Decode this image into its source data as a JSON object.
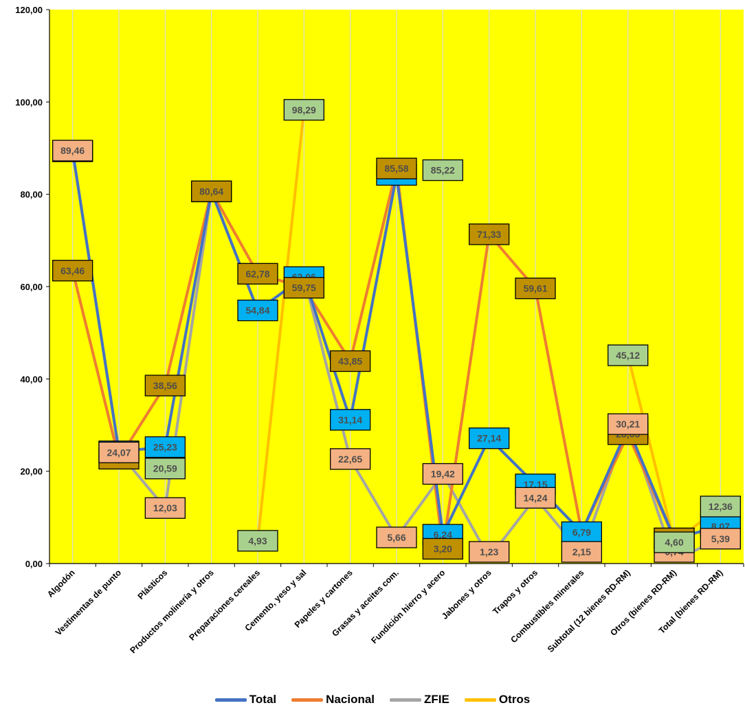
{
  "chart_data": {
    "type": "line",
    "title": "",
    "xlabel": "",
    "ylabel": "",
    "ylim": [
      0,
      120
    ],
    "yticks": [
      0,
      20,
      40,
      60,
      80,
      100,
      120
    ],
    "ytick_labels": [
      "0,00",
      "20,00",
      "40,00",
      "60,00",
      "80,00",
      "100,00",
      "120,00"
    ],
    "grid": "vertical",
    "plot_background": "#ffff00",
    "legend_position": "bottom",
    "categories": [
      "Algodón",
      "Vestimentas de punto",
      "Plásticos",
      "Productos molinería y otros",
      "Preparaciones cereales",
      "Cemento, yeso y sal",
      "Papeles y cartones",
      "Grasas y aceites com.",
      "Fundición hierro y acero",
      "Jabones y otros",
      "Trapos y otros",
      "Combustibles minerales",
      "Subtotal (12 bienes RD-RM)",
      "Otros (bienes RD-RM)",
      "Total (bienes RD-RM)"
    ],
    "series": [
      {
        "name": "Total",
        "color": "#4472c4",
        "label_color": "#00b0f0",
        "values": [
          89.31,
          24.31,
          25.23,
          80.61,
          54.84,
          62.06,
          31.14,
          84.2,
          6.24,
          27.14,
          17.15,
          6.79,
          29.45,
          5.44,
          8.07
        ],
        "labels": [
          "89,31",
          "24,31",
          "25,23",
          "80,61",
          "54,84",
          "62,06",
          "31,14",
          "84,20",
          "6,24",
          "27,14",
          "17,15",
          "6,79",
          "29,45",
          "5,44",
          "8,07"
        ]
      },
      {
        "name": "Nacional",
        "color": "#ed7d31",
        "label_color": "#bf9000",
        "values": [
          63.46,
          22.72,
          38.56,
          80.64,
          62.78,
          59.75,
          43.85,
          85.58,
          3.2,
          71.33,
          59.61,
          6.79,
          28.03,
          5.44,
          8.07
        ],
        "labels": [
          "63,46",
          "22,72",
          "38,56",
          "80,64",
          "62,78",
          "59,75",
          "43,85",
          "85,58",
          "3,20",
          "71,33",
          "59,61",
          "",
          "28,03",
          "5,44",
          ""
        ]
      },
      {
        "name": "ZFIE",
        "color": "#a5a5a5",
        "label_color": "#f4b183",
        "values": [
          89.46,
          24.07,
          12.03,
          80.64,
          54.84,
          62.06,
          22.65,
          5.66,
          19.42,
          1.23,
          14.24,
          2.15,
          30.21,
          0.74,
          5.39
        ],
        "labels": [
          "89,46",
          "24,07",
          "12,03",
          "",
          "",
          "",
          "22,65",
          "5,66",
          "19,42",
          "1,23",
          "14,24",
          "2,15",
          "30,21",
          "0,74",
          "5,39"
        ]
      },
      {
        "name": "Otros",
        "color": "#ffc000",
        "label_color": "#a9d18e",
        "values": [
          null,
          null,
          20.59,
          null,
          4.93,
          98.29,
          null,
          null,
          85.22,
          null,
          null,
          null,
          45.12,
          4.6,
          12.36
        ],
        "labels": [
          "",
          "",
          "20,59",
          "",
          "4,93",
          "98,29",
          "",
          "",
          "85,22",
          "",
          "",
          "",
          "45,12",
          "4,60",
          "12,36"
        ]
      }
    ]
  }
}
